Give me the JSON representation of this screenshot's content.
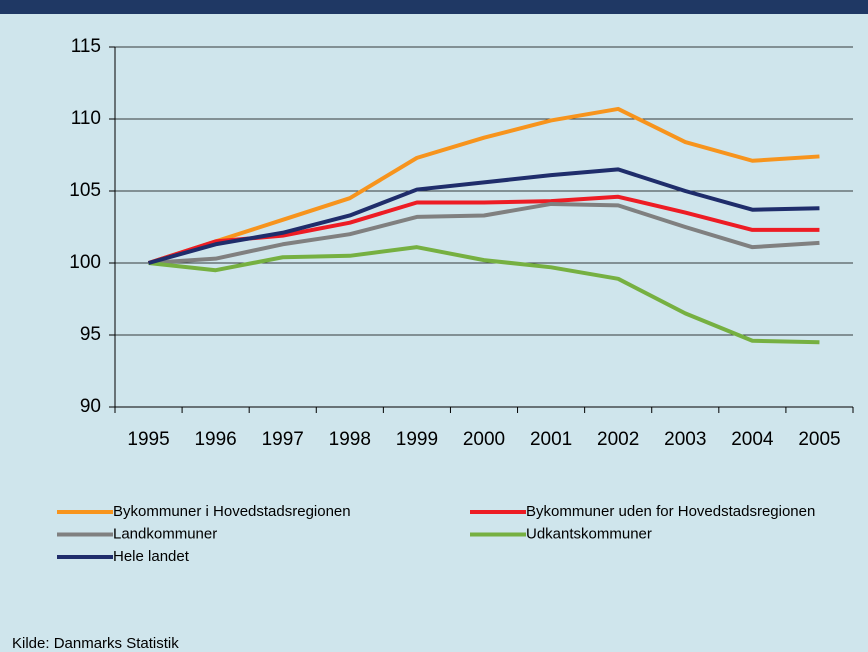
{
  "chart_data": {
    "type": "line",
    "categories": [
      "1995",
      "1996",
      "1997",
      "1998",
      "1999",
      "2000",
      "2001",
      "2002",
      "2003",
      "2004",
      "2005"
    ],
    "series": [
      {
        "name": "Bykommuner i Hovedstadsregionen",
        "color": "#f7941d",
        "values": [
          100,
          101.5,
          103,
          104.5,
          107.3,
          108.7,
          109.9,
          110.7,
          108.4,
          107.1,
          107.4
        ]
      },
      {
        "name": "Bykommuner uden for Hovedstadsregionen",
        "color": "#ed1c24",
        "values": [
          100,
          101.5,
          101.9,
          102.8,
          104.2,
          104.2,
          104.3,
          104.6,
          103.5,
          102.3,
          102.3
        ]
      },
      {
        "name": "Landkommuner",
        "color": "#808080",
        "values": [
          100,
          100.3,
          101.3,
          102.0,
          103.2,
          103.3,
          104.1,
          104.0,
          102.5,
          101.1,
          101.4
        ]
      },
      {
        "name": "Udkantskommuner",
        "color": "#76b041",
        "values": [
          100,
          99.5,
          100.4,
          100.5,
          101.1,
          100.2,
          99.7,
          98.9,
          96.5,
          94.6,
          94.5
        ]
      },
      {
        "name": "Hele landet",
        "color": "#1f2d6b",
        "values": [
          100,
          101.3,
          102.1,
          103.3,
          105.1,
          105.6,
          106.1,
          106.5,
          105.0,
          103.7,
          103.8
        ]
      }
    ],
    "ylim": [
      90,
      115
    ],
    "yticks": [
      90,
      95,
      100,
      105,
      110,
      115
    ],
    "grid": true,
    "source": "Kilde: Danmarks Statistik"
  }
}
